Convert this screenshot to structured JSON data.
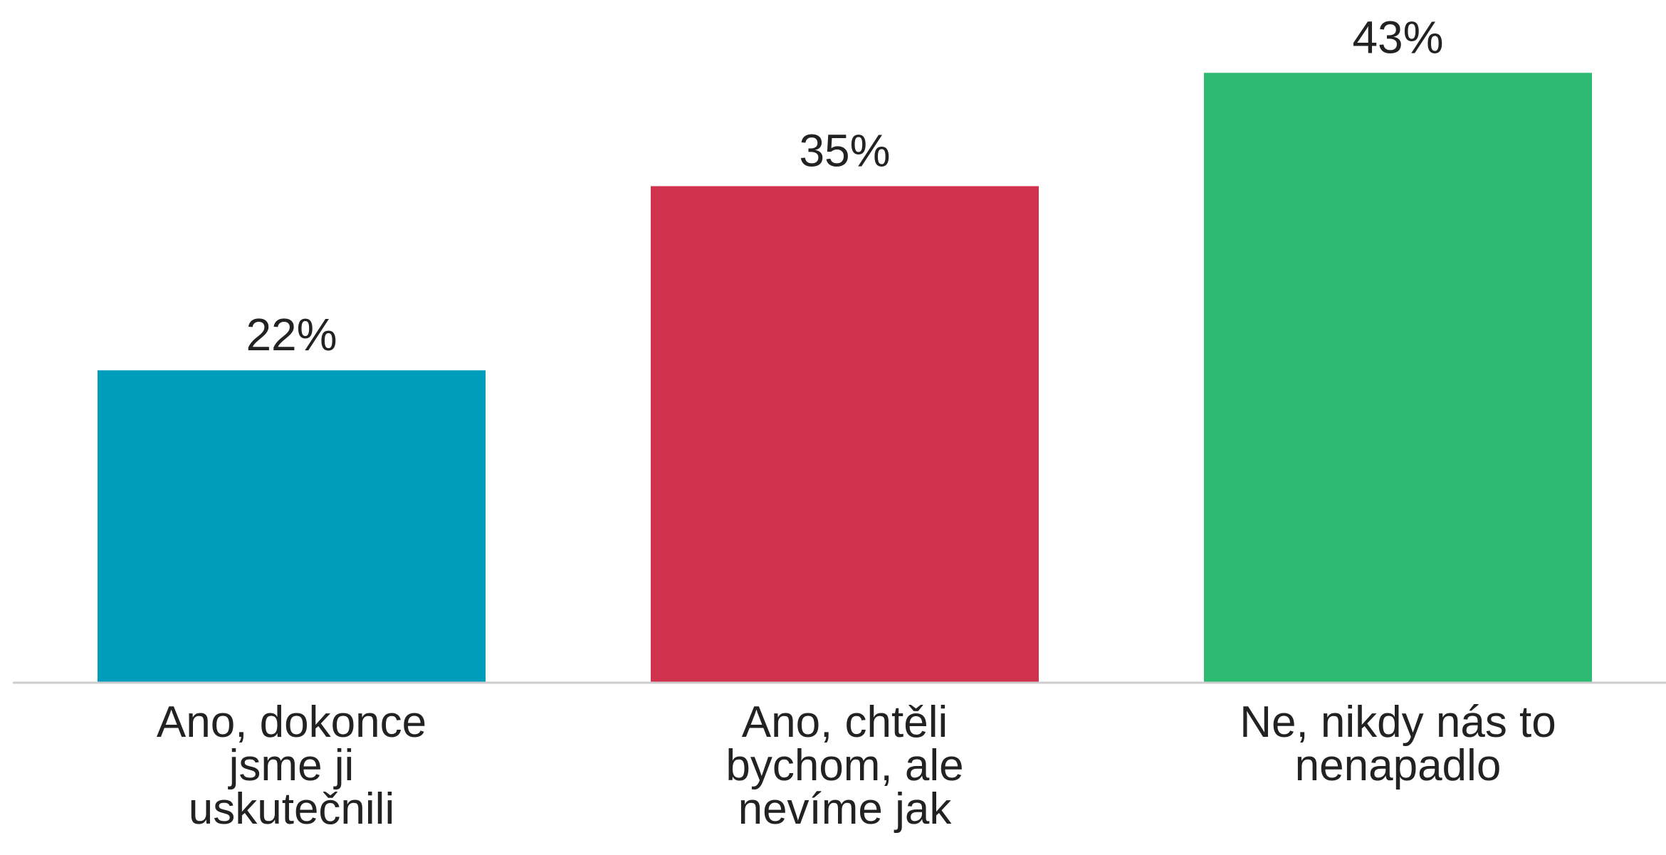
{
  "chart_data": {
    "type": "bar",
    "categories": [
      [
        "Ano, dokonce",
        "jsme ji",
        "uskutečnili"
      ],
      [
        "Ano, chtěli",
        "bychom, ale",
        "nevíme jak"
      ],
      [
        "Ne, nikdy nás to",
        "nenapadlo"
      ]
    ],
    "values": [
      22,
      35,
      43
    ],
    "value_labels": [
      "22%",
      "35%",
      "43%"
    ],
    "colors": [
      "#009dbb",
      "#d0314d",
      "#2dbb74"
    ],
    "axis_color": "#cccccc",
    "title": "",
    "xlabel": "",
    "ylabel": "",
    "ylim": [
      0,
      44
    ],
    "grid": false,
    "legend": "none"
  }
}
